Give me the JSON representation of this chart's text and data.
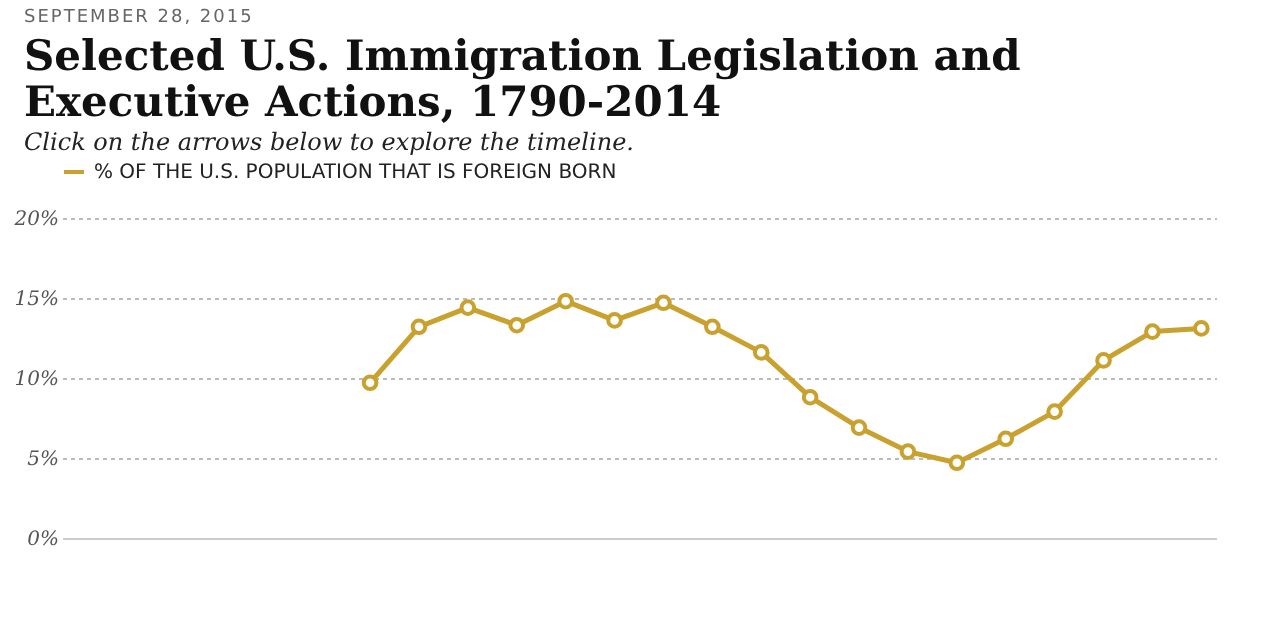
{
  "chart_data": {
    "type": "line",
    "title": "Selected U.S. Immigration Legislation and Executive Actions, 1790-2014",
    "subtitle": "Click on the arrows below to explore the timeline.",
    "annotations": [
      "SEPTEMBER 28, 2015"
    ],
    "categories": [
      null,
      null,
      null,
      null,
      null,
      null,
      null,
      null,
      null,
      null,
      null,
      null,
      null,
      null,
      null,
      null,
      null,
      null,
      null,
      null,
      null,
      null,
      null,
      null
    ],
    "series": [
      {
        "name": "% OF THE U.S. POPULATION THAT IS FOREIGN BORN",
        "color": "#c9a12e",
        "values": [
          null,
          null,
          null,
          null,
          null,
          null,
          9.7,
          13.2,
          14.4,
          13.3,
          14.8,
          13.6,
          14.7,
          13.2,
          11.6,
          8.8,
          6.9,
          5.4,
          4.7,
          6.2,
          7.9,
          11.1,
          12.9,
          13.1
        ]
      }
    ],
    "ylim": [
      0,
      20
    ],
    "yticks": [
      {
        "value": 0,
        "label": "0%"
      },
      {
        "value": 5,
        "label": "5%"
      },
      {
        "value": 10,
        "label": "10%"
      },
      {
        "value": 15,
        "label": "15%"
      },
      {
        "value": 20,
        "label": "20%"
      }
    ],
    "tick_labels": "y",
    "grid": "y",
    "legend": "top",
    "marker": "circle",
    "line_style": "solid"
  }
}
